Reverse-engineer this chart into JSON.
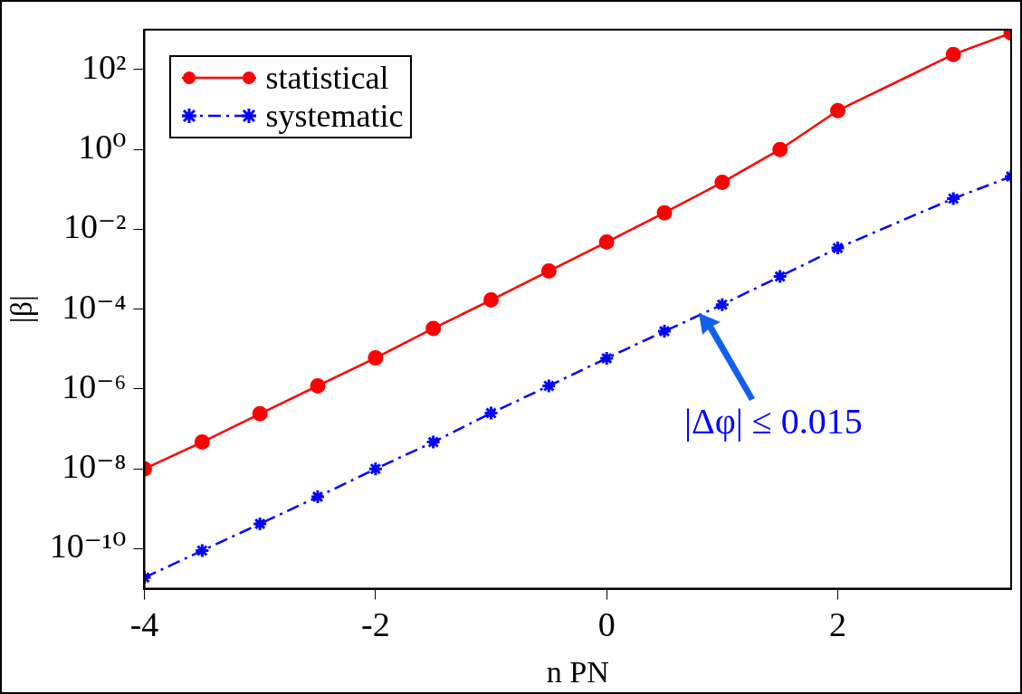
{
  "chart_data": {
    "type": "line",
    "xlabel": "n PN",
    "ylabel": "|β|",
    "x": [
      -4,
      -3.5,
      -3,
      -2.5,
      -2,
      -1.5,
      -1,
      -0.5,
      0,
      0.5,
      1,
      1.5,
      2,
      3,
      3.5
    ],
    "series": [
      {
        "name": "statistical",
        "color": "#ff0000",
        "marker": "circle",
        "line_style": "solid",
        "values": [
          1e-08,
          4.7e-08,
          2.4e-07,
          1.2e-06,
          6e-06,
          3.3e-05,
          0.00017,
          0.0009,
          0.0048,
          0.026,
          0.15,
          1.0,
          9.4,
          240,
          830
        ]
      },
      {
        "name": "systematic",
        "color": "#0000ff",
        "marker": "cross",
        "line_style": "dashdot",
        "values": [
          1.9e-11,
          9e-11,
          4.2e-10,
          2e-09,
          1e-08,
          4.7e-08,
          2.5e-07,
          1.2e-06,
          5.9e-06,
          2.8e-05,
          0.00013,
          0.00066,
          0.0034,
          0.059,
          0.21
        ]
      }
    ],
    "xlim": [
      -4,
      3.5
    ],
    "xticks": [
      -4,
      -2,
      0,
      2
    ],
    "ylim": [
      1e-11,
      1000
    ],
    "log": "y",
    "yticks": [
      {
        "value": 1e-10,
        "label": "10⁻¹⁰"
      },
      {
        "value": 1e-08,
        "label": "10⁻⁸"
      },
      {
        "value": 1e-06,
        "label": "10⁻⁶"
      },
      {
        "value": 0.0001,
        "label": "10⁻⁴"
      },
      {
        "value": 0.01,
        "label": "10⁻²"
      },
      {
        "value": 1,
        "label": "10⁰"
      },
      {
        "value": 100,
        "label": "10²"
      }
    ],
    "grid": false,
    "legend": "top left",
    "annotations": [
      {
        "text": "|Δφ| ≤ 0.015",
        "x": 0.8,
        "y": 8e-05
      }
    ]
  }
}
